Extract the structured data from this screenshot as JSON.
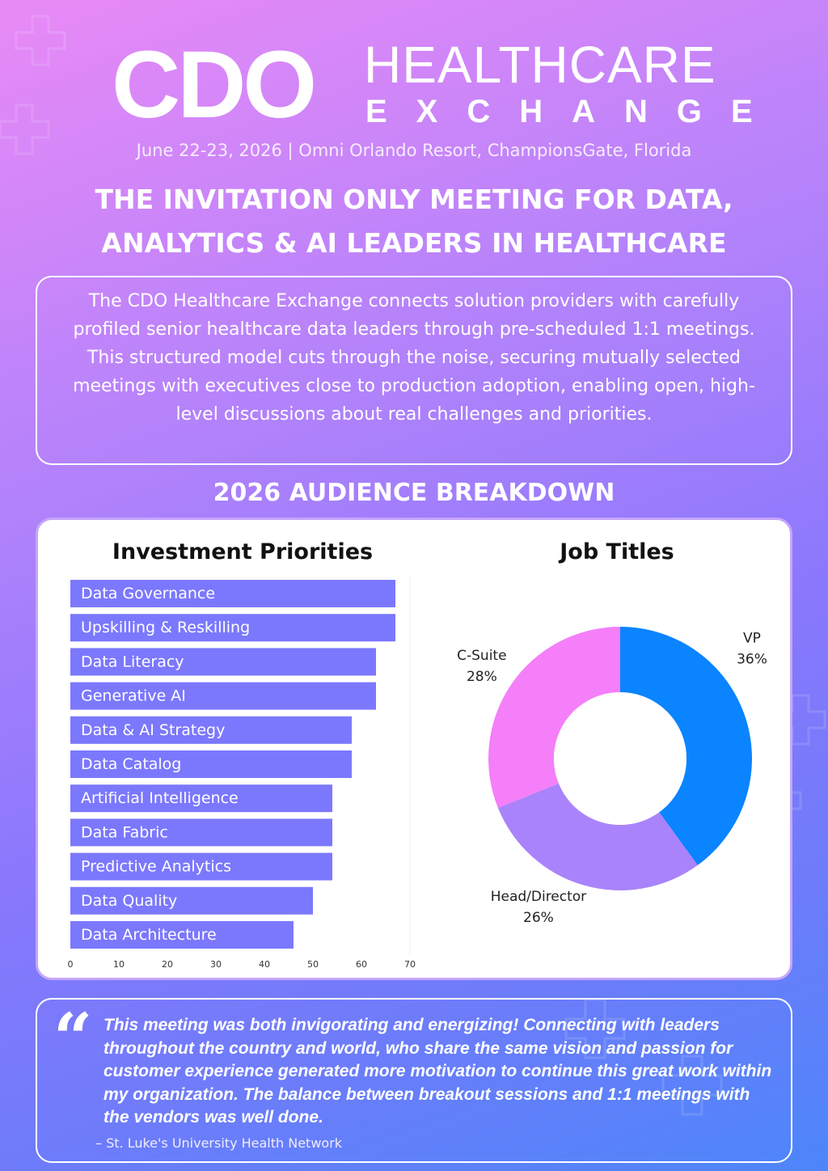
{
  "logo": {
    "primary": "CDO",
    "line1": "HEALTHCARE",
    "line2": "EXCHANGE"
  },
  "event": {
    "details": "June 22-23, 2026 | Omni Orlando Resort, ChampionsGate, Florida"
  },
  "headline": {
    "line1": "THE INVITATION ONLY MEETING FOR DATA,",
    "line2": "ANALYTICS & AI LEADERS IN HEALTHCARE"
  },
  "intro": {
    "text": "The CDO Healthcare Exchange connects solution providers with carefully profiled senior healthcare data leaders through pre-scheduled 1:1 meetings. This structured model cuts through the noise, securing mutually selected meetings with executives close to production adoption, enabling open, high-level discussions about real challenges and priorities."
  },
  "breakdown": {
    "title": "2026 AUDIENCE BREAKDOWN"
  },
  "quote": {
    "mark": "“",
    "text": "This meeting was both invigorating and energizing! Connecting with leaders throughout the country and world, who share the same vision and passion for customer experience generated more motivation to continue this great work within my organization. The balance between breakout sessions and 1:1 meetings with the vendors was well done.",
    "source": "– St. Luke's University Health Network"
  },
  "colors": {
    "bar": "#7b78fd",
    "vp": "#0a84ff",
    "head": "#a983fb",
    "csuite": "#f47ff9"
  },
  "chart_data": [
    {
      "type": "bar",
      "orientation": "horizontal",
      "title": "Investment Priorities",
      "categories": [
        "Data Governance",
        "Upskilling & Reskilling",
        "Data Literacy",
        "Generative AI",
        "Data & AI Strategy",
        "Data Catalog",
        "Artificial Intelligence",
        "Data Fabric",
        "Predictive Analytics",
        "Data Quality",
        "Data Architecture"
      ],
      "values": [
        67,
        67,
        63,
        63,
        58,
        58,
        54,
        54,
        54,
        50,
        46
      ],
      "xlim": [
        0,
        70
      ],
      "xticks": [
        "0",
        "10",
        "20",
        "30",
        "40",
        "50",
        "60",
        "70"
      ],
      "grid": false
    },
    {
      "type": "pie",
      "style": "donut",
      "title": "Job Titles",
      "labels": [
        "VP",
        "Head/Director",
        "C-Suite"
      ],
      "values": [
        36,
        26,
        28
      ],
      "value_labels": [
        "36%",
        "26%",
        "28%"
      ]
    }
  ]
}
